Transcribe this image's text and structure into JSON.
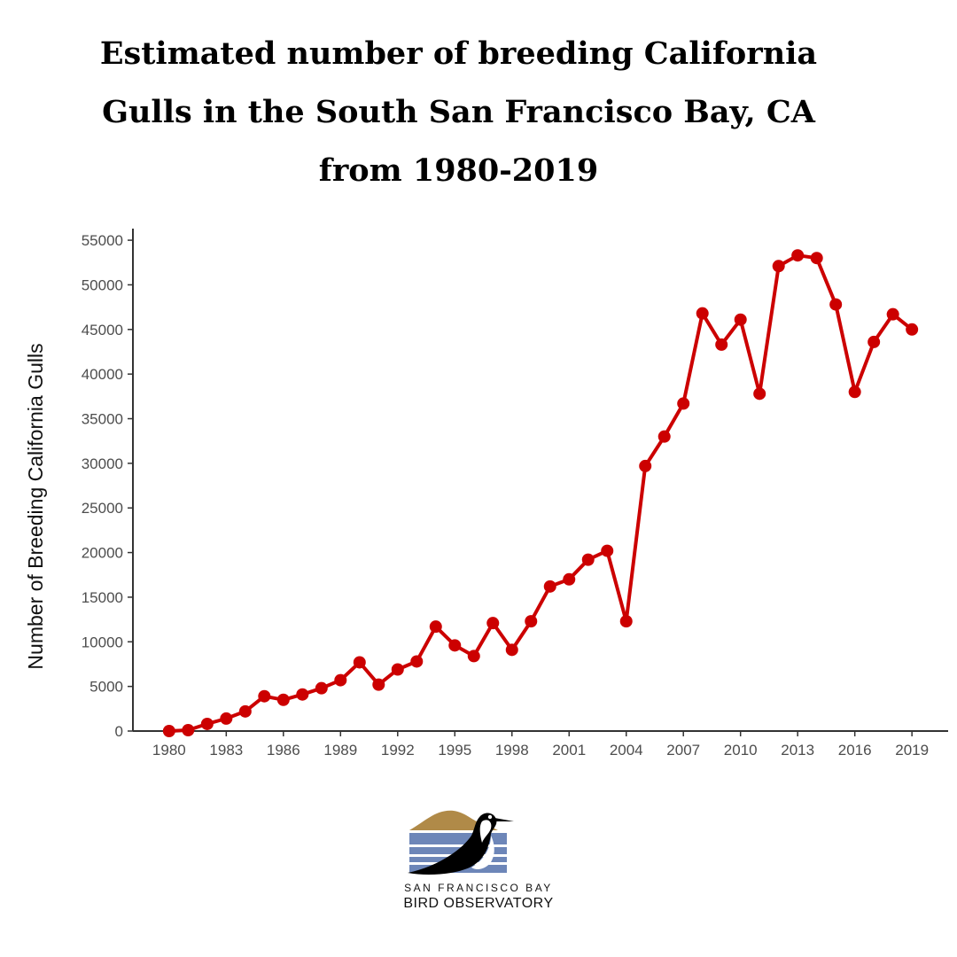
{
  "title": {
    "line1": "Estimated number of breeding California",
    "line2": "Gulls in the South San Francisco Bay, CA",
    "line3": "from 1980-2019"
  },
  "colors": {
    "series": "#cc0000",
    "axis": "#333333",
    "tick_label": "#4d4d4d",
    "logo_hill": "#b08a48",
    "logo_water": "#6d86b8"
  },
  "chart_data": {
    "type": "line",
    "title": "",
    "xlabel": "",
    "ylabel": "Number of Breeding California Gulls",
    "ylim": [
      0,
      55000
    ],
    "xlim": [
      1980,
      2019
    ],
    "grid": false,
    "legend": "none",
    "yticks": [
      0,
      5000,
      10000,
      15000,
      20000,
      25000,
      30000,
      35000,
      40000,
      45000,
      50000,
      55000
    ],
    "xticks": [
      1980,
      1983,
      1986,
      1989,
      1992,
      1995,
      1998,
      2001,
      2004,
      2007,
      2010,
      2013,
      2016,
      2019
    ],
    "x": [
      1980,
      1981,
      1982,
      1983,
      1984,
      1985,
      1986,
      1987,
      1988,
      1989,
      1990,
      1991,
      1992,
      1993,
      1994,
      1995,
      1996,
      1997,
      1998,
      1999,
      2000,
      2001,
      2002,
      2003,
      2004,
      2005,
      2006,
      2007,
      2008,
      2009,
      2010,
      2011,
      2012,
      2013,
      2014,
      2015,
      2016,
      2017,
      2018,
      2019
    ],
    "series": [
      {
        "values": [
          0,
          100,
          800,
          1400,
          2200,
          3900,
          3500,
          4100,
          4800,
          5700,
          7700,
          5200,
          6900,
          7800,
          11700,
          9600,
          8400,
          12100,
          9100,
          12300,
          16200,
          17000,
          19200,
          20200,
          12300,
          29700,
          33000,
          36700,
          46800,
          43300,
          46100,
          37800,
          52100,
          53300,
          53000,
          47800,
          38000,
          43600,
          46700,
          45000
        ]
      }
    ]
  },
  "logo": {
    "line1": "SAN FRANCISCO BAY",
    "line2": "BIRD OBSERVATORY"
  }
}
